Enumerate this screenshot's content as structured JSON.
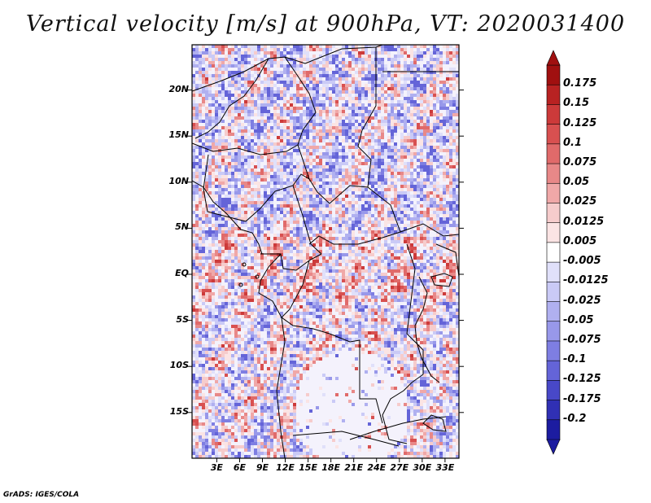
{
  "title": "Vertical velocity [m/s] at 900hPa, VT: 2020031400",
  "footer": "GrADS: IGES/COLA",
  "map": {
    "lat_ticks": [
      "20N",
      "15N",
      "10N",
      "5N",
      "EQ",
      "5S",
      "10S",
      "15S"
    ],
    "lon_ticks": [
      "3E",
      "6E",
      "9E",
      "12E",
      "15E",
      "18E",
      "21E",
      "24E",
      "27E",
      "30E",
      "33E"
    ]
  },
  "colorbar": {
    "labels": [
      "0.175",
      "0.15",
      "0.125",
      "0.1",
      "0.075",
      "0.05",
      "0.025",
      "0.0125",
      "0.005",
      "-0.005",
      "-0.0125",
      "-0.025",
      "-0.05",
      "-0.075",
      "-0.1",
      "-0.125",
      "-0.175",
      "-0.2"
    ],
    "colors": [
      "#a01010",
      "#b82222",
      "#cc3a3a",
      "#d85050",
      "#e06a6a",
      "#e88888",
      "#f0a8a8",
      "#f6cccc",
      "#fbe4e4",
      "#ffffff",
      "#e0e0fa",
      "#cacaf6",
      "#b0b0f0",
      "#9898ea",
      "#7e7ee2",
      "#6464d8",
      "#4848c8",
      "#3030b4",
      "#1c1ca0"
    ]
  }
}
